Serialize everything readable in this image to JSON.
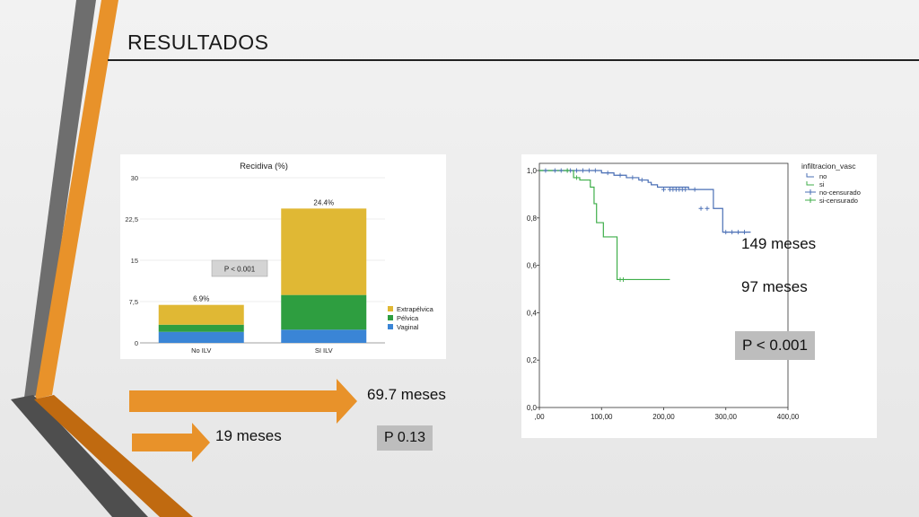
{
  "slide": {
    "title": "RESULTADOS",
    "colors": {
      "orange": "#e8922a",
      "gray": "#6e6e6e",
      "dark_orange": "#c06a10"
    }
  },
  "callouts": {
    "arrow_big_label": "69.7 meses",
    "arrow_small_label": "19 meses",
    "p_bars": "P 0.13",
    "km_label_no": "149 meses",
    "km_label_si": "97 meses",
    "p_km": "P < 0.001"
  },
  "chart_data": [
    {
      "type": "bar",
      "stacked": true,
      "title": "Recidiva (%)",
      "categories": [
        "No ILV",
        "SI ILV"
      ],
      "series": [
        {
          "name": "Vaginal",
          "values": [
            2.0,
            2.4
          ],
          "color": "#3a85d6"
        },
        {
          "name": "Pélvica",
          "values": [
            1.3,
            6.3
          ],
          "color": "#2e9e40"
        },
        {
          "name": "Extrapélvica",
          "values": [
            3.6,
            15.7
          ],
          "color": "#e0b834"
        }
      ],
      "totals_labels": [
        "6.9%",
        "24.4%"
      ],
      "totals": [
        6.9,
        24.4
      ],
      "yticks": [
        "0",
        "7,5",
        "15",
        "22,5",
        "30"
      ],
      "ylim": [
        0,
        30
      ],
      "annotation": "P < 0.001",
      "legend_position": "right",
      "grid": true
    },
    {
      "type": "line",
      "step": true,
      "legend_title": "infiltracion_vasc",
      "legend": [
        "no",
        "si",
        "no-censurado",
        "si-censurado"
      ],
      "xticks": [
        ",00",
        "100,00",
        "200,00",
        "300,00",
        "400,00"
      ],
      "yticks": [
        "0,0",
        "0,2",
        "0,4",
        "0,6",
        "0,8",
        "1,0"
      ],
      "xlim": [
        0,
        400
      ],
      "ylim": [
        0,
        1
      ],
      "grid": false,
      "series": [
        {
          "name": "no",
          "color": "#4a6fb5",
          "x": [
            0,
            100,
            120,
            140,
            160,
            175,
            180,
            190,
            240,
            245,
            280,
            295,
            340
          ],
          "y": [
            1.0,
            0.99,
            0.98,
            0.97,
            0.96,
            0.95,
            0.94,
            0.93,
            0.92,
            0.92,
            0.84,
            0.74,
            0.74
          ]
        },
        {
          "name": "si",
          "color": "#3fae4a",
          "x": [
            0,
            55,
            65,
            82,
            88,
            92,
            103,
            115,
            125,
            140,
            210
          ],
          "y": [
            1.0,
            0.97,
            0.96,
            0.93,
            0.86,
            0.78,
            0.72,
            0.72,
            0.54,
            0.54,
            0.54
          ]
        }
      ],
      "censored": [
        {
          "series": "no",
          "x": [
            10,
            25,
            35,
            45,
            50,
            60,
            70,
            80,
            90,
            110,
            130,
            150,
            165,
            200,
            210,
            215,
            220,
            225,
            230,
            235,
            250,
            260,
            270,
            300,
            310,
            320,
            330
          ],
          "y": [
            1.0,
            1.0,
            1.0,
            1.0,
            1.0,
            1.0,
            1.0,
            1.0,
            1.0,
            0.99,
            0.98,
            0.97,
            0.96,
            0.92,
            0.92,
            0.92,
            0.92,
            0.92,
            0.92,
            0.92,
            0.92,
            0.84,
            0.84,
            0.74,
            0.74,
            0.74,
            0.74
          ]
        },
        {
          "series": "si",
          "x": [
            45,
            60,
            130,
            135
          ],
          "y": [
            1.0,
            0.97,
            0.54,
            0.54
          ]
        }
      ]
    }
  ]
}
